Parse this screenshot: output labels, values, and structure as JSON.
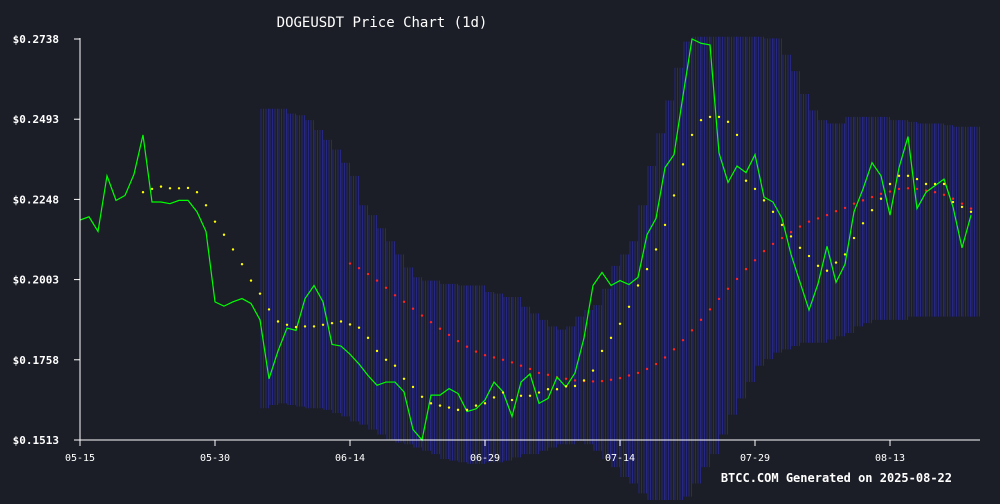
{
  "chart_data": {
    "type": "line",
    "title": "DOGEUSDT Price Chart (1d)",
    "footer": "BTCC.COM Generated on 2025-08-22",
    "y_ticks": [
      "$0.2738",
      "$0.2493",
      "$0.2248",
      "$0.2003",
      "$0.1758",
      "$0.1513"
    ],
    "y_tick_values": [
      0.2738,
      0.2493,
      0.2248,
      0.2003,
      0.1758,
      0.1513
    ],
    "ylim": [
      0.1513,
      0.2738
    ],
    "x_ticks": [
      "05-15",
      "05-30",
      "06-14",
      "06-29",
      "07-14",
      "07-29",
      "08-13"
    ],
    "x_tick_days": [
      0,
      15,
      30,
      45,
      60,
      75,
      90
    ],
    "x_range_days": [
      0,
      100
    ],
    "grid": false,
    "colors": {
      "background": "#1b1e27",
      "price": "#00ff00",
      "sar": "#ffff00",
      "ma": "#ff2222",
      "band": "#2d2dab",
      "axis": "#ffffff",
      "text": "#ffffff"
    },
    "series": [
      {
        "key": "price",
        "x": [
          0,
          1,
          2,
          3,
          4,
          5,
          6,
          7,
          8,
          9,
          10,
          11,
          12,
          13,
          14,
          15,
          16,
          17,
          18,
          19,
          20,
          21,
          22,
          23,
          24,
          25,
          26,
          27,
          28,
          29,
          30,
          31,
          32,
          33,
          34,
          35,
          36,
          37,
          38,
          39,
          40,
          41,
          42,
          43,
          44,
          45,
          46,
          47,
          48,
          49,
          50,
          51,
          52,
          53,
          54,
          55,
          56,
          57,
          58,
          59,
          60,
          61,
          62,
          63,
          64,
          65,
          66,
          67,
          68,
          69,
          70,
          71,
          72,
          73,
          74,
          75,
          76,
          77,
          78,
          79,
          80,
          81,
          82,
          83,
          84,
          85,
          86,
          87,
          88,
          89,
          90,
          91,
          92,
          93,
          94,
          95,
          96,
          97,
          98,
          99
        ],
        "values": [
          0.2185,
          0.2195,
          0.215,
          0.232,
          0.2245,
          0.226,
          0.2325,
          0.2445,
          0.224,
          0.224,
          0.2235,
          0.2245,
          0.2245,
          0.221,
          0.215,
          0.1935,
          0.1922,
          0.1935,
          0.1945,
          0.193,
          0.188,
          0.17,
          0.1785,
          0.1855,
          0.1848,
          0.1945,
          0.1985,
          0.1935,
          0.1805,
          0.18,
          0.1775,
          0.1745,
          0.171,
          0.168,
          0.169,
          0.169,
          0.166,
          0.1545,
          0.1513,
          0.165,
          0.165,
          0.167,
          0.1655,
          0.16,
          0.1608,
          0.1635,
          0.169,
          0.166,
          0.1585,
          0.169,
          0.1715,
          0.1625,
          0.164,
          0.1705,
          0.1675,
          0.1718,
          0.1825,
          0.1985,
          0.2025,
          0.1985,
          0.2,
          0.1988,
          0.201,
          0.214,
          0.219,
          0.2345,
          0.2385,
          0.2565,
          0.2738,
          0.2725,
          0.272,
          0.239,
          0.23,
          0.235,
          0.233,
          0.2385,
          0.2255,
          0.224,
          0.219,
          0.208,
          0.1995,
          0.191,
          0.199,
          0.2105,
          0.1995,
          0.205,
          0.221,
          0.228,
          0.236,
          0.232,
          0.22,
          0.2345,
          0.244,
          0.222,
          0.227,
          0.229,
          0.231,
          0.2225,
          0.21,
          0.22
        ]
      },
      {
        "key": "sar",
        "x": [
          7,
          8,
          9,
          10,
          11,
          12,
          13,
          14,
          15,
          16,
          17,
          18,
          19,
          20,
          21,
          22,
          23,
          24,
          25,
          26,
          27,
          28,
          29,
          30,
          31,
          32,
          33,
          34,
          35,
          36,
          37,
          38,
          39,
          40,
          41,
          42,
          43,
          44,
          45,
          46,
          47,
          48,
          49,
          50,
          51,
          52,
          53,
          54,
          55,
          56,
          57,
          58,
          59,
          60,
          61,
          62,
          63,
          64,
          65,
          66,
          67,
          68,
          69,
          70,
          71,
          72,
          73,
          74,
          75,
          76,
          77,
          78,
          79,
          80,
          81,
          82,
          83,
          84,
          85,
          86,
          87,
          88,
          89,
          90,
          91,
          92,
          93,
          94,
          95,
          96,
          97,
          98,
          99
        ],
        "values": [
          0.227,
          0.228,
          0.2287,
          0.2282,
          0.2282,
          0.2283,
          0.227,
          0.223,
          0.218,
          0.214,
          0.2095,
          0.205,
          0.2,
          0.196,
          0.1912,
          0.1875,
          0.1865,
          0.1858,
          0.186,
          0.186,
          0.1865,
          0.187,
          0.1875,
          0.1866,
          0.1856,
          0.1825,
          0.1785,
          0.1758,
          0.174,
          0.17,
          0.1675,
          0.1645,
          0.1625,
          0.1618,
          0.1612,
          0.1605,
          0.1605,
          0.1618,
          0.1625,
          0.1643,
          0.1658,
          0.1635,
          0.1648,
          0.1648,
          0.1658,
          0.1668,
          0.1668,
          0.1677,
          0.1678,
          0.1695,
          0.1725,
          0.1785,
          0.1825,
          0.1868,
          0.192,
          0.1985,
          0.2035,
          0.2095,
          0.217,
          0.226,
          0.2355,
          0.2445,
          0.249,
          0.25,
          0.25,
          0.2485,
          0.2445,
          0.2305,
          0.228,
          0.2245,
          0.221,
          0.217,
          0.2135,
          0.21,
          0.2075,
          0.2045,
          0.203,
          0.2055,
          0.208,
          0.213,
          0.2175,
          0.2215,
          0.225,
          0.2295,
          0.232,
          0.232,
          0.231,
          0.2295,
          0.2295,
          0.2295,
          0.224,
          0.2225,
          0.221
        ]
      },
      {
        "key": "ma",
        "x": [
          30,
          31,
          32,
          33,
          34,
          35,
          36,
          37,
          38,
          39,
          40,
          41,
          42,
          43,
          44,
          45,
          46,
          47,
          48,
          49,
          50,
          51,
          52,
          53,
          54,
          55,
          56,
          57,
          58,
          59,
          60,
          61,
          62,
          63,
          64,
          65,
          66,
          67,
          68,
          69,
          70,
          71,
          72,
          73,
          74,
          75,
          76,
          77,
          78,
          79,
          80,
          81,
          82,
          83,
          84,
          85,
          86,
          87,
          88,
          89,
          90,
          91,
          92,
          93,
          94,
          95,
          96,
          97,
          98,
          99
        ],
        "values": [
          0.2052,
          0.2038,
          0.202,
          0.2,
          0.1978,
          0.1955,
          0.1935,
          0.1914,
          0.1893,
          0.1873,
          0.1853,
          0.1834,
          0.1815,
          0.1798,
          0.1783,
          0.1772,
          0.1765,
          0.1758,
          0.175,
          0.174,
          0.173,
          0.1718,
          0.1712,
          0.1705,
          0.17,
          0.1695,
          0.1693,
          0.1692,
          0.1693,
          0.1697,
          0.1702,
          0.171,
          0.1718,
          0.173,
          0.1745,
          0.1765,
          0.179,
          0.1818,
          0.1848,
          0.188,
          0.1912,
          0.1944,
          0.1975,
          0.2005,
          0.2035,
          0.2062,
          0.209,
          0.2112,
          0.213,
          0.2148,
          0.2165,
          0.218,
          0.219,
          0.22,
          0.2212,
          0.2222,
          0.2235,
          0.2245,
          0.2255,
          0.2265,
          0.2272,
          0.228,
          0.2282,
          0.228,
          0.2275,
          0.227,
          0.2262,
          0.225,
          0.2235,
          0.222
        ]
      },
      {
        "key": "band",
        "x": [
          20,
          21,
          22,
          23,
          24,
          25,
          26,
          27,
          28,
          29,
          30,
          31,
          32,
          33,
          34,
          35,
          36,
          37,
          38,
          39,
          40,
          41,
          42,
          43,
          44,
          45,
          46,
          47,
          48,
          49,
          50,
          51,
          52,
          53,
          54,
          55,
          56,
          57,
          58,
          59,
          60,
          61,
          62,
          63,
          64,
          65,
          66,
          67,
          68,
          69,
          70,
          71,
          72,
          73,
          74,
          75,
          76,
          77,
          78,
          79,
          80,
          81,
          82,
          83,
          84,
          85,
          86,
          87,
          88,
          89,
          90,
          91,
          92,
          93,
          94,
          95,
          96,
          97,
          98,
          99
        ],
        "upper": [
          0.2525,
          0.2525,
          0.2525,
          0.251,
          0.2505,
          0.249,
          0.246,
          0.243,
          0.24,
          0.236,
          0.232,
          0.223,
          0.22,
          0.216,
          0.212,
          0.208,
          0.204,
          0.201,
          0.2,
          0.2,
          0.199,
          0.199,
          0.1985,
          0.1985,
          0.1985,
          0.1965,
          0.196,
          0.195,
          0.195,
          0.192,
          0.19,
          0.188,
          0.186,
          0.185,
          0.186,
          0.189,
          0.191,
          0.1925,
          0.1975,
          0.2045,
          0.208,
          0.212,
          0.223,
          0.235,
          0.245,
          0.255,
          0.265,
          0.273,
          0.2745,
          0.2745,
          0.2745,
          0.2745,
          0.2745,
          0.2745,
          0.2745,
          0.2745,
          0.274,
          0.274,
          0.269,
          0.264,
          0.257,
          0.252,
          0.249,
          0.248,
          0.248,
          0.25,
          0.25,
          0.25,
          0.25,
          0.25,
          0.249,
          0.249,
          0.2485,
          0.248,
          0.248,
          0.248,
          0.2475,
          0.247,
          0.247,
          0.247
        ],
        "lower": [
          0.161,
          0.162,
          0.1625,
          0.162,
          0.1615,
          0.161,
          0.161,
          0.1605,
          0.1595,
          0.1585,
          0.157,
          0.156,
          0.1545,
          0.153,
          0.1515,
          0.1505,
          0.15,
          0.149,
          0.148,
          0.147,
          0.1455,
          0.145,
          0.1445,
          0.144,
          0.144,
          0.1445,
          0.1445,
          0.145,
          0.146,
          0.147,
          0.147,
          0.148,
          0.149,
          0.15,
          0.15,
          0.151,
          0.15,
          0.148,
          0.1455,
          0.143,
          0.14,
          0.138,
          0.135,
          0.132,
          0.13,
          0.131,
          0.132,
          0.134,
          0.138,
          0.143,
          0.147,
          0.153,
          0.159,
          0.164,
          0.169,
          0.174,
          0.176,
          0.178,
          0.179,
          0.18,
          0.181,
          0.181,
          0.181,
          0.182,
          0.183,
          0.184,
          0.186,
          0.187,
          0.188,
          0.188,
          0.188,
          0.188,
          0.189,
          0.189,
          0.189,
          0.189,
          0.189,
          0.189,
          0.189,
          0.189
        ]
      }
    ]
  }
}
